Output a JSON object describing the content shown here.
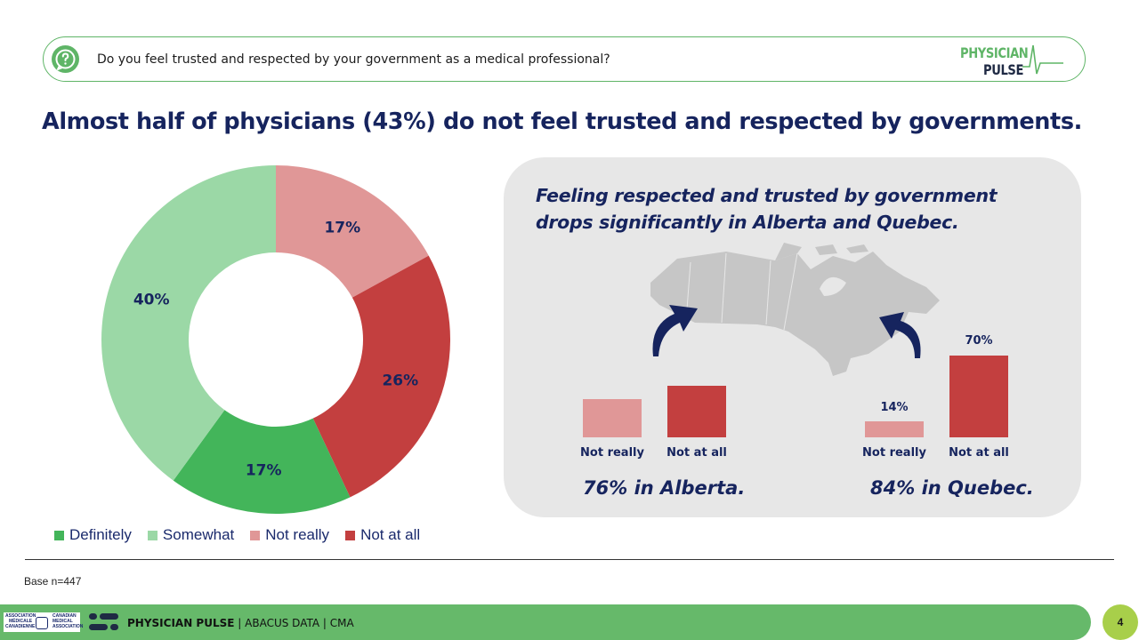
{
  "question": {
    "text": "Do you feel trusted and respected by your government as a medical professional?"
  },
  "logo": {
    "line1": "PHYSICIAN",
    "line2": "PULSE"
  },
  "headline": "Almost half of physicians (43%) do not feel trusted and respected by governments.",
  "chart_data": [
    {
      "type": "pie",
      "variant": "donut",
      "categories": [
        "Definitely",
        "Somewhat",
        "Not really",
        "Not at all"
      ],
      "values": [
        17,
        40,
        17,
        26
      ],
      "labels": [
        "17%",
        "40%",
        "17%",
        "26%"
      ],
      "colors": [
        "#43b55a",
        "#9bd8a6",
        "#e09797",
        "#c33f3f"
      ],
      "legend_position": "bottom-left"
    },
    {
      "type": "bar",
      "region": "Alberta",
      "categories": [
        "Not really",
        "Not at all"
      ],
      "values": [
        null,
        null
      ],
      "ylim": [
        0,
        70
      ]
    },
    {
      "type": "bar",
      "region": "Quebec",
      "categories": [
        "Not really",
        "Not at all"
      ],
      "values": [
        14,
        70
      ],
      "labels": [
        "14%",
        "70%"
      ],
      "ylim": [
        0,
        70
      ]
    }
  ],
  "legend": {
    "items": [
      {
        "label": "Definitely",
        "color": "#43b55a"
      },
      {
        "label": "Somewhat",
        "color": "#9bd8a6"
      },
      {
        "label": "Not really",
        "color": "#e09797"
      },
      {
        "label": "Not at all",
        "color": "#c33f3f"
      }
    ]
  },
  "panel": {
    "title": "Feeling respected and trusted by government drops significantly in Alberta and Quebec.",
    "alberta": {
      "labels": [
        "Not really",
        "Not at all"
      ],
      "summary": "76% in Alberta."
    },
    "quebec": {
      "labels": [
        "Not really",
        "Not at all"
      ],
      "values": [
        "14%",
        "70%"
      ],
      "summary": "84% in Quebec."
    }
  },
  "base_note": "Base n=447",
  "footer": {
    "brand": "PHYSICIAN PULSE",
    "rest": " | ABACUS DATA | CMA",
    "cma_lines": [
      "ASSOCIATION",
      "MÉDICALE",
      "CANADIENNE",
      "CANADIAN",
      "MEDICAL",
      "ASSOCIATION"
    ],
    "page": "4"
  }
}
